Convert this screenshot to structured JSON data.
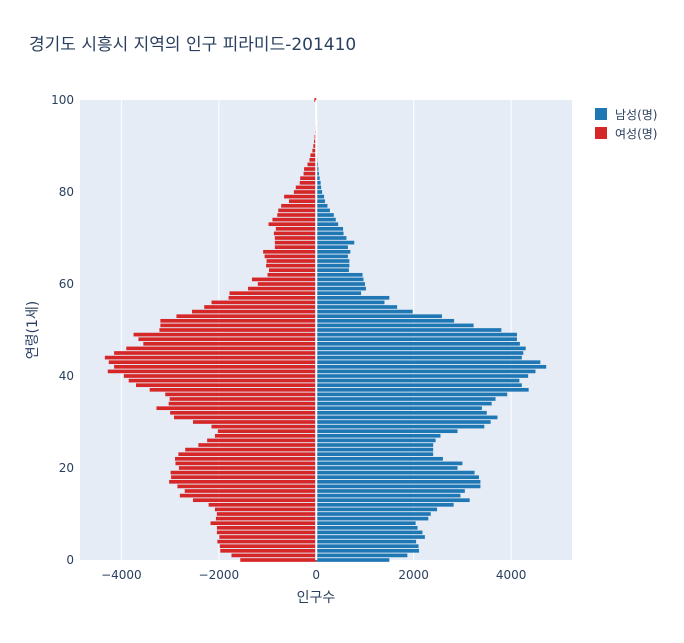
{
  "chart_data": {
    "type": "bar",
    "orientation": "horizontal",
    "title": "경기도 시흥시 지역의 인구 피라미드-201410",
    "xlabel": "인구수",
    "ylabel": "연령(1세)",
    "xlim": [
      -4850,
      5250
    ],
    "ylim": [
      0,
      100
    ],
    "x_ticks": [
      -4000,
      -2000,
      0,
      2000,
      4000
    ],
    "x_tick_labels": [
      "−4000",
      "−2000",
      "0",
      "2000",
      "4000"
    ],
    "y_ticks": [
      0,
      20,
      40,
      60,
      80,
      100
    ],
    "y_tick_labels": [
      "0",
      "20",
      "40",
      "60",
      "80",
      "100"
    ],
    "grid": true,
    "legend_position": "top-right",
    "ages": [
      0,
      1,
      2,
      3,
      4,
      5,
      6,
      7,
      8,
      9,
      10,
      11,
      12,
      13,
      14,
      15,
      16,
      17,
      18,
      19,
      20,
      21,
      22,
      23,
      24,
      25,
      26,
      27,
      28,
      29,
      30,
      31,
      32,
      33,
      34,
      35,
      36,
      37,
      38,
      39,
      40,
      41,
      42,
      43,
      44,
      45,
      46,
      47,
      48,
      49,
      50,
      51,
      52,
      53,
      54,
      55,
      56,
      57,
      58,
      59,
      60,
      61,
      62,
      63,
      64,
      65,
      66,
      67,
      68,
      69,
      70,
      71,
      72,
      73,
      74,
      75,
      76,
      77,
      78,
      79,
      80,
      81,
      82,
      83,
      84,
      85,
      86,
      87,
      88,
      89,
      90,
      91,
      92,
      93,
      94,
      95,
      96,
      97,
      98,
      99,
      100
    ],
    "series": [
      {
        "name": "남성(명)",
        "color": "#1f77b4",
        "values": [
          1500,
          1870,
          2110,
          2100,
          2050,
          2230,
          2180,
          2080,
          2040,
          2300,
          2350,
          2480,
          2820,
          3150,
          2960,
          3050,
          3370,
          3370,
          3340,
          3250,
          2900,
          3000,
          2600,
          2400,
          2400,
          2400,
          2450,
          2550,
          2900,
          3450,
          3580,
          3720,
          3500,
          3400,
          3600,
          3680,
          3920,
          4360,
          4220,
          4170,
          4350,
          4500,
          4720,
          4600,
          4220,
          4250,
          4300,
          4180,
          4120,
          4120,
          3800,
          3230,
          2830,
          2580,
          1980,
          1660,
          1400,
          1500,
          920,
          1020,
          1000,
          970,
          950,
          670,
          680,
          680,
          650,
          700,
          650,
          780,
          620,
          560,
          550,
          450,
          400,
          360,
          280,
          230,
          180,
          160,
          120,
          100,
          90,
          70,
          55,
          45,
          35,
          25,
          18,
          12,
          10,
          8,
          6,
          5,
          4,
          3,
          2,
          2,
          1,
          1,
          1
        ]
      },
      {
        "name": "여성(명)",
        "color": "#d62728",
        "values": [
          1560,
          1740,
          1970,
          1980,
          2030,
          1990,
          2040,
          2040,
          2170,
          2060,
          2040,
          2080,
          2210,
          2530,
          2800,
          2700,
          2850,
          3020,
          2980,
          2990,
          2820,
          2890,
          2900,
          2830,
          2690,
          2420,
          2240,
          2080,
          2020,
          2150,
          2530,
          2920,
          3000,
          3280,
          3030,
          3010,
          3100,
          3420,
          3700,
          3850,
          3950,
          4280,
          4150,
          4260,
          4340,
          4150,
          3900,
          3550,
          3650,
          3750,
          3220,
          3200,
          3200,
          2870,
          2550,
          2300,
          2150,
          1800,
          1780,
          1400,
          1200,
          1320,
          1000,
          970,
          1030,
          1020,
          1060,
          1090,
          850,
          850,
          850,
          870,
          830,
          980,
          900,
          800,
          780,
          720,
          560,
          660,
          460,
          420,
          340,
          330,
          260,
          250,
          180,
          140,
          120,
          80,
          60,
          45,
          35,
          25,
          20,
          15,
          10,
          8,
          5,
          4,
          40
        ]
      }
    ]
  }
}
